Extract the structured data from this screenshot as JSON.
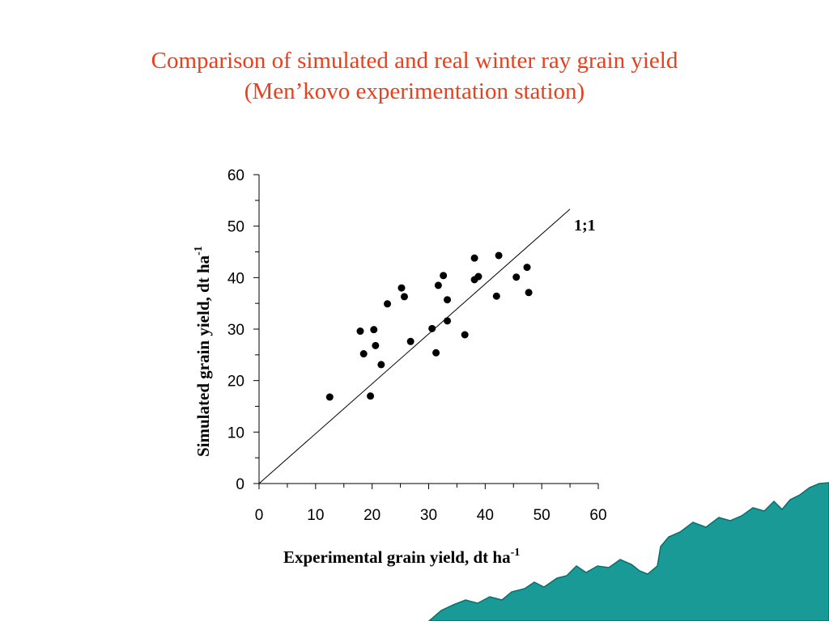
{
  "slide": {
    "title_line1": "Comparison of simulated and real winter ray grain yield",
    "title_line2": "(Men’kovo experimentation station)"
  },
  "colors": {
    "title": "#e8401c",
    "points": "#000000",
    "decor_fill": "#1a9a96",
    "decor_stroke": "#0c6e6b"
  },
  "decor": {
    "icon": "teal-landscape-corner-decoration"
  },
  "chart_data": {
    "type": "scatter",
    "xlabel": "Experimental grain yield, dt ha",
    "xlabel_sup": "-1",
    "ylabel": "Simulated grain yield, dt ha",
    "ylabel_sup": "-1",
    "xlim": [
      0,
      60
    ],
    "ylim": [
      0,
      60
    ],
    "xticks": [
      0,
      10,
      20,
      30,
      40,
      50,
      60
    ],
    "yticks": [
      0,
      10,
      20,
      30,
      40,
      50,
      60
    ],
    "minor_tick_step": 5,
    "grid": false,
    "reference_line": {
      "label": "1;1",
      "from": [
        0,
        0
      ],
      "to": [
        55,
        53.3
      ]
    },
    "points": [
      {
        "x": 12.5,
        "y": 16.8
      },
      {
        "x": 17.9,
        "y": 29.6
      },
      {
        "x": 18.5,
        "y": 25.2
      },
      {
        "x": 19.7,
        "y": 17.0
      },
      {
        "x": 20.3,
        "y": 29.9
      },
      {
        "x": 20.6,
        "y": 26.8
      },
      {
        "x": 21.6,
        "y": 23.1
      },
      {
        "x": 22.7,
        "y": 34.9
      },
      {
        "x": 25.2,
        "y": 38.0
      },
      {
        "x": 25.7,
        "y": 36.3
      },
      {
        "x": 26.8,
        "y": 27.6
      },
      {
        "x": 30.6,
        "y": 30.1
      },
      {
        "x": 31.3,
        "y": 25.4
      },
      {
        "x": 31.7,
        "y": 38.5
      },
      {
        "x": 32.6,
        "y": 40.4
      },
      {
        "x": 33.3,
        "y": 35.7
      },
      {
        "x": 33.3,
        "y": 31.6
      },
      {
        "x": 36.4,
        "y": 28.9
      },
      {
        "x": 38.1,
        "y": 43.8
      },
      {
        "x": 38.1,
        "y": 39.6
      },
      {
        "x": 38.8,
        "y": 40.2
      },
      {
        "x": 42.0,
        "y": 36.4
      },
      {
        "x": 42.4,
        "y": 44.3
      },
      {
        "x": 45.5,
        "y": 40.1
      },
      {
        "x": 47.4,
        "y": 42.0
      },
      {
        "x": 47.7,
        "y": 37.1
      }
    ]
  }
}
